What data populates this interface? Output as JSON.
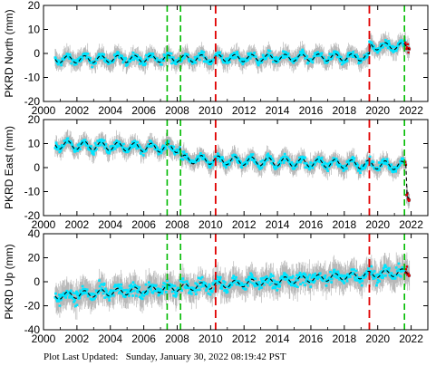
{
  "footer": {
    "label": "Plot Last Updated:",
    "timestamp": "Sunday, January 30, 2022 08:19:42 PST"
  },
  "colors": {
    "data": "#00e5ff",
    "error_bars": "#b8b8b8",
    "model": "#000000",
    "recent": "#dd0000",
    "equipment_change": "#00bb00",
    "earthquake": "#e00000"
  },
  "chart_data": [
    {
      "type": "scatter",
      "ylabel": "PKRD North (mm)",
      "xlim": [
        2000,
        2023
      ],
      "ylim": [
        -20,
        20
      ],
      "yticks": [
        -20,
        -10,
        0,
        10,
        20
      ],
      "xticks": [
        2000,
        2002,
        2004,
        2006,
        2008,
        2010,
        2012,
        2014,
        2016,
        2018,
        2020,
        2022
      ],
      "x_tick_labels": true,
      "start": 2000.7,
      "end": 2021.9,
      "offset": -2.5,
      "trend_mm_per_yr": 0.05,
      "seasonal_amplitude": 1.5,
      "scatter": 2.0,
      "error": 4.0,
      "steps": [
        {
          "x": 2019.5,
          "dy": 4.5
        }
      ],
      "green_lines": [
        2007.4,
        2008.2,
        2021.6
      ],
      "red_lines": [
        2010.3,
        2019.5
      ]
    },
    {
      "type": "scatter",
      "ylabel": "PKRD East (mm)",
      "xlim": [
        2000,
        2023
      ],
      "ylim": [
        -20,
        20
      ],
      "yticks": [
        -20,
        -10,
        0,
        10,
        20
      ],
      "xticks": [
        2000,
        2002,
        2004,
        2006,
        2008,
        2010,
        2012,
        2014,
        2016,
        2018,
        2020,
        2022
      ],
      "x_tick_labels": false,
      "start": 2000.7,
      "end": 2021.9,
      "offset": 9.5,
      "trend_mm_per_yr": -0.2,
      "seasonal_amplitude": 1.8,
      "scatter": 2.0,
      "error": 4.0,
      "steps": [
        {
          "x": 2008.2,
          "dy": -4.5
        },
        {
          "x": 2021.7,
          "dy": -12.0
        }
      ],
      "green_lines": [
        2007.4,
        2008.2,
        2021.6
      ],
      "red_lines": [
        2010.3,
        2019.5
      ]
    },
    {
      "type": "scatter",
      "ylabel": "PKRD Up (mm)",
      "xlim": [
        2000,
        2023
      ],
      "ylim": [
        -40,
        40
      ],
      "yticks": [
        -40,
        -20,
        0,
        20,
        40
      ],
      "xticks": [
        2000,
        2002,
        2004,
        2006,
        2008,
        2010,
        2012,
        2014,
        2016,
        2018,
        2020,
        2022
      ],
      "x_tick_labels": true,
      "start": 2000.7,
      "end": 2021.9,
      "offset": -12.0,
      "trend_mm_per_yr": 0.95,
      "seasonal_amplitude": 3.0,
      "scatter": 7.0,
      "error": 12.0,
      "steps": [],
      "green_lines": [
        2007.4,
        2008.2,
        2021.6
      ],
      "red_lines": [
        2010.3,
        2019.5
      ]
    }
  ]
}
